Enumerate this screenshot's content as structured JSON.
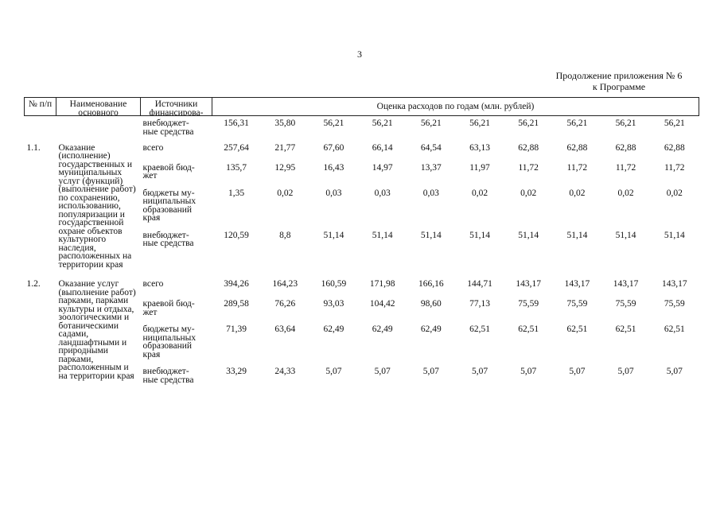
{
  "page_number": "3",
  "header": {
    "line1": "Продолжение приложения № 6",
    "line2": "к Программе"
  },
  "table": {
    "columns": [
      "№ п/п",
      "Наименование основного",
      "Источники финансирова-",
      "Оценка расходов по годам (млн. рублей)"
    ],
    "continuation": {
      "source": "внебюджет-\nные средства",
      "values": [
        "156,31",
        "35,80",
        "56,21",
        "56,21",
        "56,21",
        "56,21",
        "56,21",
        "56,21",
        "56,21",
        "56,21"
      ]
    },
    "groups": [
      {
        "number": "1.1.",
        "name": "Оказание (исполнение) государственных и муниципальных услуг (функций) (выполнение работ) по сохранению, использованию, популяризации и государственной охране объектов культурного наследия, расположенных на территории края",
        "rows": [
          {
            "source": "всего",
            "values": [
              "257,64",
              "21,77",
              "67,60",
              "66,14",
              "64,54",
              "63,13",
              "62,88",
              "62,88",
              "62,88",
              "62,88"
            ]
          },
          {
            "source": "краевой бюд-\nжет",
            "values": [
              "135,7",
              "12,95",
              "16,43",
              "14,97",
              "13,37",
              "11,97",
              "11,72",
              "11,72",
              "11,72",
              "11,72"
            ]
          },
          {
            "source": "бюджеты му-\nниципальных\nобразований\nкрая",
            "values": [
              "1,35",
              "0,02",
              "0,03",
              "0,03",
              "0,03",
              "0,02",
              "0,02",
              "0,02",
              "0,02",
              "0,02"
            ]
          },
          {
            "source": "внебюджет-\nные средства",
            "values": [
              "120,59",
              "8,8",
              "51,14",
              "51,14",
              "51,14",
              "51,14",
              "51,14",
              "51,14",
              "51,14",
              "51,14"
            ]
          }
        ]
      },
      {
        "number": "1.2.",
        "name": "Оказание услуг (выполнение работ) парками, парками культуры и отдыха, зоологическими и ботаническими садами, ландшафтными и природными парками, расположенным и на территории края",
        "rows": [
          {
            "source": "всего",
            "values": [
              "394,26",
              "164,23",
              "160,59",
              "171,98",
              "166,16",
              "144,71",
              "143,17",
              "143,17",
              "143,17",
              "143,17"
            ]
          },
          {
            "source": "краевой бюд-\nжет",
            "values": [
              "289,58",
              "76,26",
              "93,03",
              "104,42",
              "98,60",
              "77,13",
              "75,59",
              "75,59",
              "75,59",
              "75,59"
            ]
          },
          {
            "source": "бюджеты му-\nниципальных\nобразований\nкрая",
            "values": [
              "71,39",
              "63,64",
              "62,49",
              "62,49",
              "62,49",
              "62,51",
              "62,51",
              "62,51",
              "62,51",
              "62,51"
            ]
          },
          {
            "source": "внебюджет-\nные средства",
            "values": [
              "33,29",
              "24,33",
              "5,07",
              "5,07",
              "5,07",
              "5,07",
              "5,07",
              "5,07",
              "5,07",
              "5,07"
            ]
          }
        ]
      }
    ]
  }
}
